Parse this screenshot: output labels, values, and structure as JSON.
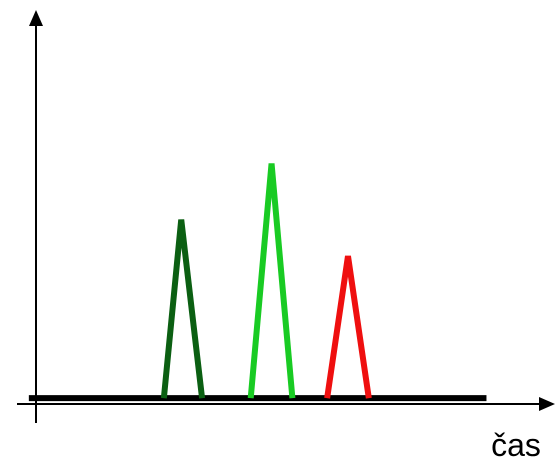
{
  "chart_data": {
    "type": "line",
    "title": "",
    "xlabel": "čas",
    "ylabel": "",
    "grid": false,
    "legend": "none",
    "axis_color": "#000000",
    "baseline_color": "#000000",
    "baseline": {
      "x": [
        0,
        130
      ],
      "y": 0
    },
    "xlim": [
      -6,
      148
    ],
    "ylim": [
      -6,
      115
    ],
    "series": [
      {
        "color": "#0b5f12",
        "x": [
          38,
          43,
          49
        ],
        "y": [
          0,
          54,
          0
        ]
      },
      {
        "color": "#19cb23",
        "x": [
          63,
          69,
          75
        ],
        "y": [
          0,
          71,
          0
        ]
      },
      {
        "color": "#ef0f0f",
        "x": [
          85,
          91,
          97
        ],
        "y": [
          0,
          43,
          0
        ]
      }
    ]
  }
}
